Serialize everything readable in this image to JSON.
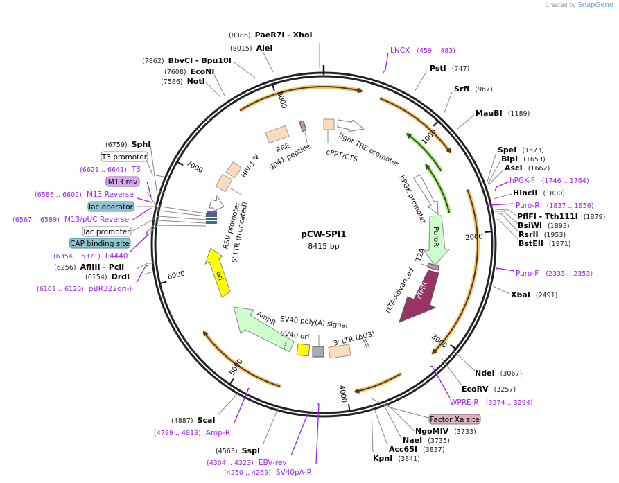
{
  "watermark": {
    "prefix": "Created by",
    "brand": "SnapGene"
  },
  "plasmid": {
    "name": "pCW-SPI1",
    "length": "8415 bp"
  },
  "ticks": [
    "1000",
    "2000",
    "3000",
    "4000",
    "5000",
    "6000",
    "7000",
    "8000"
  ],
  "enzymes": [
    {
      "name": "PaeR7I  - XhoI",
      "pos": "(8386)"
    },
    {
      "name": "AleI",
      "pos": "(8015)"
    },
    {
      "name": "BbvCI  - Bpu10I",
      "pos": "(7862)"
    },
    {
      "name": "EcoNI",
      "pos": "(7608)"
    },
    {
      "name": "NotI",
      "pos": "(7586)"
    },
    {
      "name": "PstI",
      "pos": "(747)"
    },
    {
      "name": "SrfI",
      "pos": "(967)"
    },
    {
      "name": "MauBI",
      "pos": "(1189)"
    },
    {
      "name": "SpeI",
      "pos": "(1573)"
    },
    {
      "name": "BlpI",
      "pos": "(1653)"
    },
    {
      "name": "AscI",
      "pos": "(1662)"
    },
    {
      "name": "HincII",
      "pos": "(1800)"
    },
    {
      "name": "PflFI  - Tth111I",
      "pos": "(1879)"
    },
    {
      "name": "BsiWI",
      "pos": "(1893)"
    },
    {
      "name": "RsrII",
      "pos": "(1953)"
    },
    {
      "name": "BstEII",
      "pos": "(1971)"
    },
    {
      "name": "XbaI",
      "pos": "(2491)"
    },
    {
      "name": "NdeI",
      "pos": "(3067)"
    },
    {
      "name": "EcoRV",
      "pos": "(3257)"
    },
    {
      "name": "NgoMIV",
      "pos": "(3733)"
    },
    {
      "name": "NaeI",
      "pos": "(3735)"
    },
    {
      "name": "Acc65I",
      "pos": "(3837)"
    },
    {
      "name": "KpnI",
      "pos": "(3841)"
    },
    {
      "name": "ScaI",
      "pos": "(4887)"
    },
    {
      "name": "SspI",
      "pos": "(4563)"
    },
    {
      "name": "DrdI",
      "pos": "(6154)"
    },
    {
      "name": "AflIII  - PciI",
      "pos": "(6256)"
    },
    {
      "name": "SphI",
      "pos": "(6759)"
    }
  ],
  "primers": [
    {
      "name": "LNCX",
      "range": "(459 .. 483)"
    },
    {
      "name": "hPGK-F",
      "range": "(1746 .. 1764)"
    },
    {
      "name": "Puro-R",
      "range": "(1837 .. 1856)"
    },
    {
      "name": "Puro-F",
      "range": "(2333 .. 2353)"
    },
    {
      "name": "WPRE-R",
      "range": "(3274 .. 3294)"
    },
    {
      "name": "Amp-R",
      "range": "(4799 .. 4818)"
    },
    {
      "name": "EBV-rev",
      "range": "(4304 .. 4323)"
    },
    {
      "name": "SV40pA-R",
      "range": "(4250 .. 4269)"
    },
    {
      "name": "pBR322ori-F",
      "range": "(6101 .. 6120)"
    },
    {
      "name": "L4440",
      "range": "(6354 .. 6371)"
    },
    {
      "name": "M13/pUC Reverse",
      "range": "(6567 .. 6589)"
    },
    {
      "name": "M13 Reverse",
      "range": "(6586 .. 6602)"
    },
    {
      "name": "T3",
      "range": "(6621 .. 6641)"
    }
  ],
  "boxed_features": [
    {
      "name": "T3 promoter",
      "color": "#ffffff"
    },
    {
      "name": "M13 rev",
      "color": "#d9a6f2"
    },
    {
      "name": "lac operator",
      "color": "#8fc4d0"
    },
    {
      "name": "lac promoter",
      "color": "#ffffff"
    },
    {
      "name": "CAP binding site",
      "color": "#8fc4d0"
    },
    {
      "name": "Factor Xa site",
      "color": "#d9b3c4"
    }
  ],
  "features": {
    "ori": "ori",
    "ampr": "AmpR",
    "sv40_ori": "SV40 ori",
    "sv40_polya": "SV40 poly(A) signal",
    "ltr3": "3' LTR (ΔU3)",
    "rtta": "rtTA-Advanced",
    "rtetr": "rTetR",
    "t2a": "T2A",
    "puror": "PuroR",
    "hpgk": "hPGK promoter",
    "tre": "tight TRE promoter",
    "cppt": "cPPT/CTS",
    "gp41": "gp41 peptide",
    "rre": "RRE",
    "psi": "HIV-1 Ψ",
    "rsv": "RSV promoter",
    "ltr5": "5' LTR (truncated)"
  },
  "colors": {
    "orf": "#f5c57a",
    "green": "#a6f07a",
    "primer": "#a020f0",
    "peach": "#fddcbe",
    "yellow": "#ffff00",
    "rtetr": "#993366",
    "puror": "#ccffcc"
  }
}
